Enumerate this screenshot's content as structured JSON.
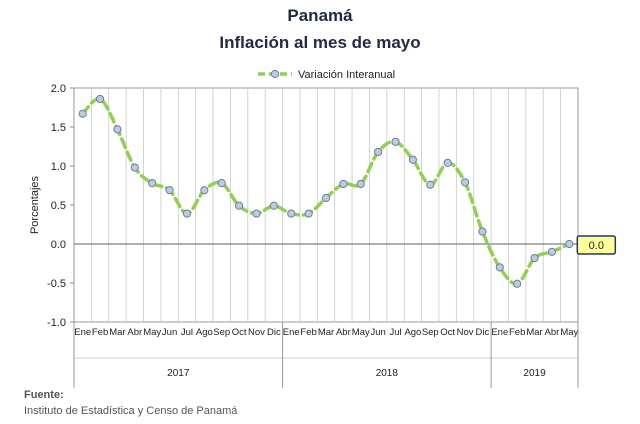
{
  "header": {
    "title": "Panamá",
    "subtitle": "Inflación al mes de mayo"
  },
  "source": {
    "label": "Fuente:",
    "text": "Instituto de Estadística y Censo de Panamá"
  },
  "chart_data": {
    "type": "line",
    "ylabel": "Porcentajes",
    "ylim": [
      -1.0,
      2.0
    ],
    "yticks": [
      "2.0",
      "1.5",
      "1.0",
      "0.5",
      "0.0",
      "-0.5",
      "-1.0"
    ],
    "grid": true,
    "legend": "top-center",
    "categories": [
      "Ene",
      "Feb",
      "Mar",
      "Abr",
      "May",
      "Jun",
      "Jul",
      "Ago",
      "Sep",
      "Oct",
      "Nov",
      "Dic",
      "Ene",
      "Feb",
      "Mar",
      "Abr",
      "May",
      "Jun",
      "Jul",
      "Ago",
      "Sep",
      "Oct",
      "Nov",
      "Dic",
      "Ene",
      "Feb",
      "Mar",
      "Abr",
      "May"
    ],
    "tick_labels": [
      "Ene",
      "Feb",
      "Mar",
      "Abr",
      "May",
      "Jun",
      "Jul",
      "Ago",
      "Sep",
      "Oct",
      "Nov",
      "Dic",
      "Ene",
      "Feb",
      "Mar",
      "Abr",
      "May",
      "Jun",
      "Jul",
      "Ago",
      "Sep",
      "Oct",
      "Nov",
      "Dic",
      "Ene",
      "Feb",
      "Mar",
      "Abr",
      "May"
    ],
    "years": [
      {
        "label": "2017",
        "start": 0,
        "count": 12
      },
      {
        "label": "2018",
        "start": 12,
        "count": 12
      },
      {
        "label": "2019",
        "start": 24,
        "count": 5
      }
    ],
    "series": [
      {
        "name": "Variación Interanual",
        "color": "#92d050",
        "marker_color": "#b8cce4",
        "values": [
          1.67,
          1.86,
          1.47,
          0.98,
          0.78,
          0.69,
          0.39,
          0.69,
          0.78,
          0.49,
          0.39,
          0.49,
          0.39,
          0.39,
          0.59,
          0.77,
          0.77,
          1.18,
          1.31,
          1.08,
          0.76,
          1.04,
          0.79,
          0.16,
          -0.3,
          -0.51,
          -0.18,
          -0.1,
          0.0
        ]
      }
    ],
    "callout": {
      "label": "0.0",
      "fill": "#ffff99",
      "border": "#1f3864"
    }
  }
}
